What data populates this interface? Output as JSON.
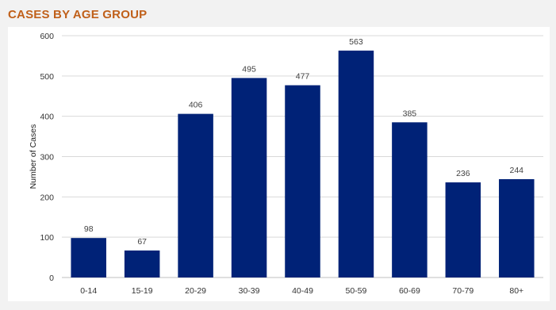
{
  "chart_data": {
    "type": "bar",
    "title": "CASES BY AGE GROUP",
    "ylabel": "Number of Cases",
    "xlabel": "",
    "categories": [
      "0-14",
      "15-19",
      "20-29",
      "30-39",
      "40-49",
      "50-59",
      "60-69",
      "70-79",
      "80+"
    ],
    "values": [
      98,
      67,
      406,
      495,
      477,
      563,
      385,
      236,
      244
    ],
    "ylim": [
      0,
      600
    ],
    "yticks": [
      0,
      100,
      200,
      300,
      400,
      500,
      600
    ],
    "grid": true,
    "bar_color": "#002277",
    "title_color": "#c0601a"
  }
}
